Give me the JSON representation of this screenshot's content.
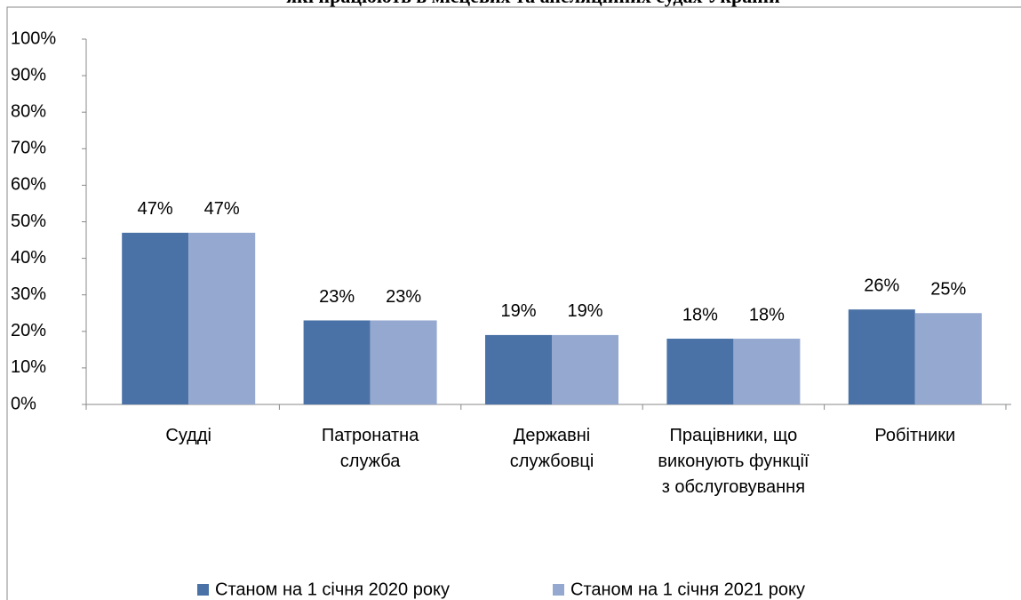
{
  "chart_data": {
    "type": "bar",
    "title": "які працюють в місцевих та апеляційних судах України",
    "categories": [
      "Судді",
      "Патронатна служба",
      "Державні службовці",
      "Працівники, що виконують функції з обслуговування",
      "Робітники"
    ],
    "series": [
      {
        "name": "Станом на 1 січня 2020 року",
        "color": "#4a72a6",
        "values": [
          47,
          23,
          19,
          18,
          26
        ],
        "value_labels": [
          "47%",
          "23%",
          "19%",
          "18%",
          "26%"
        ]
      },
      {
        "name": "Станом на 1 січня 2021 року",
        "color": "#95a9d0",
        "values": [
          47,
          23,
          19,
          18,
          25
        ],
        "value_labels": [
          "47%",
          "23%",
          "19%",
          "18%",
          "25%"
        ]
      }
    ],
    "ylim": [
      0,
      100
    ],
    "yticks": [
      {
        "value": 0,
        "label": "0%"
      },
      {
        "value": 10,
        "label": "10%"
      },
      {
        "value": 20,
        "label": "20%"
      },
      {
        "value": 30,
        "label": "30%"
      },
      {
        "value": 40,
        "label": "40%"
      },
      {
        "value": 50,
        "label": "50%"
      },
      {
        "value": 60,
        "label": "60%"
      },
      {
        "value": 70,
        "label": "70%"
      },
      {
        "value": 80,
        "label": "80%"
      },
      {
        "value": 90,
        "label": "90%"
      },
      {
        "value": 100,
        "label": "100%"
      }
    ],
    "legend": "bottom"
  }
}
